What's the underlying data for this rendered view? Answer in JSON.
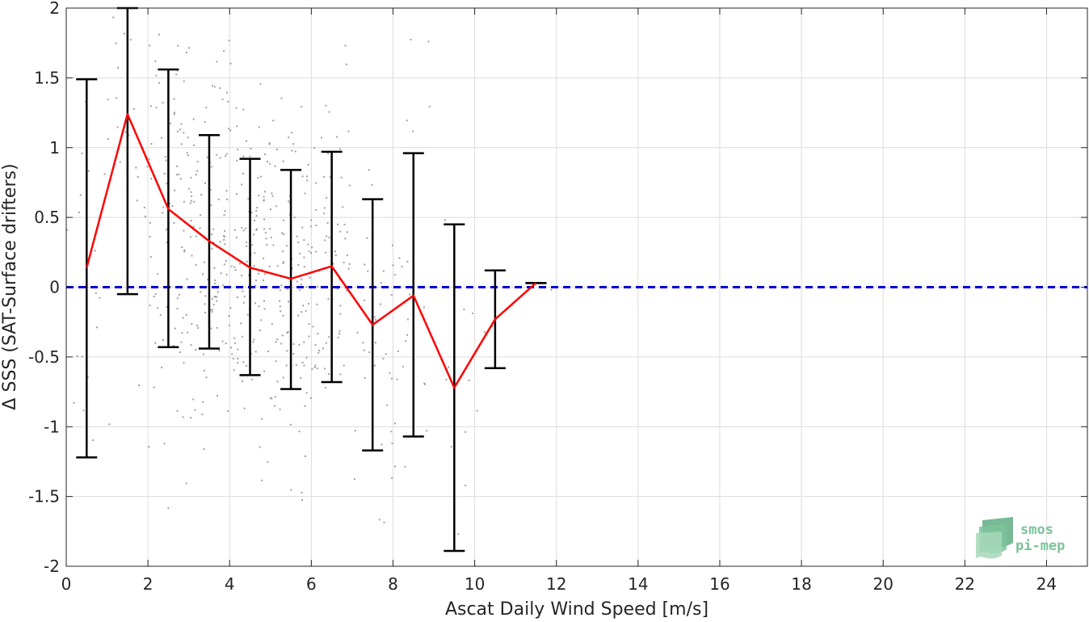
{
  "chart_data": {
    "type": "scatter",
    "title": "",
    "xlabel": "Ascat Daily Wind Speed [m/s]",
    "ylabel": "Δ SSS (SAT-Surface drifters)",
    "xlim": [
      0,
      25
    ],
    "ylim": [
      -2,
      2
    ],
    "grid": true,
    "x_ticks": [
      0,
      2,
      4,
      6,
      8,
      10,
      12,
      14,
      16,
      18,
      20,
      22,
      24
    ],
    "y_ticks": [
      -2,
      -1.5,
      -1,
      -0.5,
      0,
      0.5,
      1,
      1.5,
      2
    ],
    "x_tick_labels": [
      "0",
      "2",
      "4",
      "6",
      "8",
      "10",
      "12",
      "14",
      "16",
      "18",
      "20",
      "22",
      "24"
    ],
    "y_tick_labels": [
      "-2",
      "-1.5",
      "-1",
      "-0.5",
      "0",
      "0.5",
      "1",
      "1.5",
      "2"
    ],
    "reference_line": {
      "y": 0,
      "style": "dashed",
      "color": "#0000d4"
    },
    "binned_series": {
      "color": "#ff0000",
      "errorbar_color": "#000000",
      "x": [
        0.5,
        1.5,
        2.5,
        3.5,
        4.5,
        5.5,
        6.5,
        7.5,
        8.5,
        9.5,
        10.5,
        11.5
      ],
      "mean": [
        0.14,
        1.24,
        0.56,
        0.33,
        0.14,
        0.06,
        0.15,
        -0.27,
        -0.06,
        -0.72,
        -0.23,
        0.03
      ],
      "lower": [
        -1.22,
        -0.05,
        -0.43,
        -0.44,
        -0.63,
        -0.73,
        -0.68,
        -1.17,
        -1.07,
        -1.89,
        -0.58,
        0.03
      ],
      "upper": [
        1.49,
        2.0,
        1.56,
        1.09,
        0.92,
        0.84,
        0.97,
        0.63,
        0.96,
        0.45,
        0.12,
        0.03
      ]
    },
    "scatter_color": "#808080",
    "logo": {
      "line1": "smos",
      "line2": "pi-mep"
    }
  }
}
